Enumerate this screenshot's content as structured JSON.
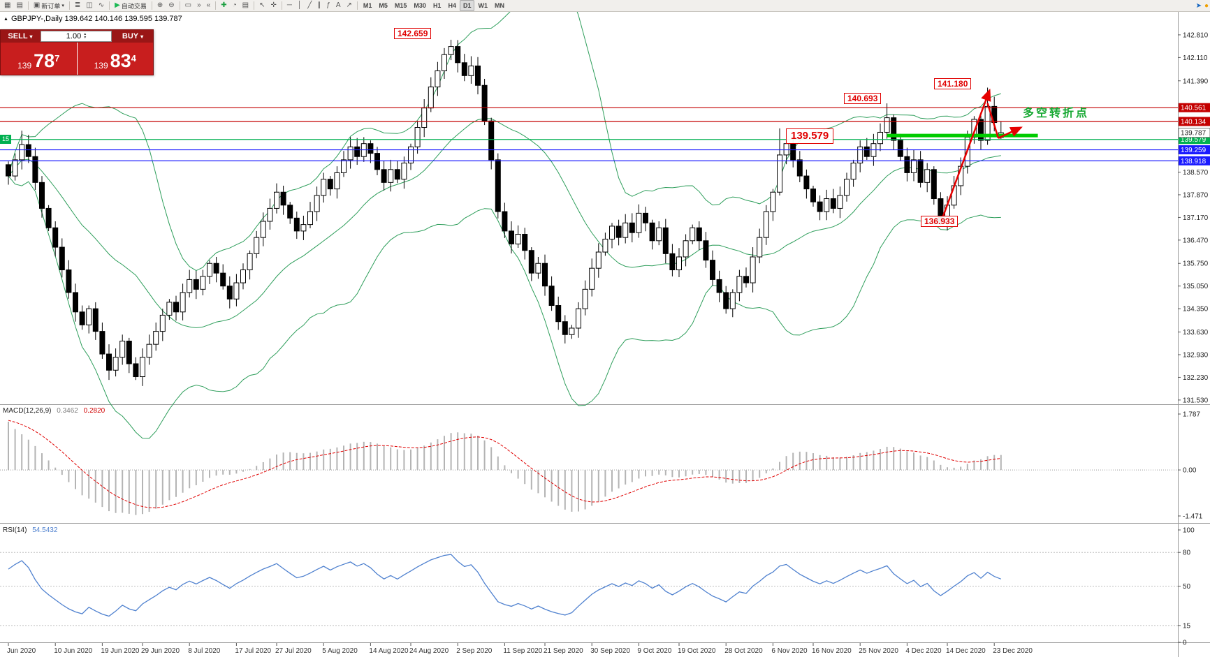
{
  "icons": {
    "caret_down": "▾",
    "spin_up": "▴",
    "spin_down": "▾",
    "symbol_marker": "▲"
  },
  "toolbar": {
    "items": [
      {
        "t": "i",
        "n": "new-chart-icon",
        "g": "▦"
      },
      {
        "t": "i",
        "n": "chart-profiles-icon",
        "g": "▤"
      },
      {
        "t": "s"
      },
      {
        "t": "b",
        "n": "new-order-button",
        "g": "▣",
        "l": "新订单",
        "caret": true
      },
      {
        "t": "s"
      },
      {
        "t": "i",
        "n": "bars-chart-icon",
        "g": "≣"
      },
      {
        "t": "i",
        "n": "candles-chart-icon",
        "g": "◫"
      },
      {
        "t": "i",
        "n": "line-chart-icon",
        "g": "∿"
      },
      {
        "t": "s"
      },
      {
        "t": "b",
        "n": "autotrade-button",
        "g": "▶",
        "gc": "#1db954",
        "l": "自动交易"
      },
      {
        "t": "s"
      },
      {
        "t": "i",
        "n": "zoom-in-icon",
        "g": "⊕"
      },
      {
        "t": "i",
        "n": "zoom-out-icon",
        "g": "⊖"
      },
      {
        "t": "s"
      },
      {
        "t": "i",
        "n": "tile-windows-icon",
        "g": "▭"
      },
      {
        "t": "i",
        "n": "auto-scroll-icon",
        "g": "»"
      },
      {
        "t": "i",
        "n": "chart-shift-icon",
        "g": "«"
      },
      {
        "t": "s"
      },
      {
        "t": "i",
        "n": "indicators-add-icon",
        "g": "✚",
        "gc": "#1a9e3f"
      },
      {
        "t": "i",
        "n": "period-icon",
        "g": "◔"
      },
      {
        "t": "i",
        "n": "template-icon",
        "g": "▤"
      },
      {
        "t": "s"
      },
      {
        "t": "i",
        "n": "cursor-icon",
        "g": "↖"
      },
      {
        "t": "i",
        "n": "crosshair-icon",
        "g": "✛"
      },
      {
        "t": "s"
      },
      {
        "t": "i",
        "n": "hline-icon",
        "g": "─"
      },
      {
        "t": "i",
        "n": "vline-icon",
        "g": "│"
      },
      {
        "t": "i",
        "n": "trendline-icon",
        "g": "╱"
      },
      {
        "t": "i",
        "n": "channel-icon",
        "g": "∥"
      },
      {
        "t": "i",
        "n": "fibonacci-icon",
        "g": "ƒ"
      },
      {
        "t": "i",
        "n": "text-icon",
        "g": "A"
      },
      {
        "t": "i",
        "n": "arrows-icon",
        "g": "↗"
      },
      {
        "t": "s"
      }
    ],
    "timeframes": [
      "M1",
      "M5",
      "M15",
      "M30",
      "H1",
      "H4",
      "D1",
      "W1",
      "MN"
    ],
    "active_timeframe": "D1",
    "right_items": [
      {
        "n": "one-click-arrow-icon",
        "g": "➤",
        "gc": "#1565c0"
      },
      {
        "n": "alert-status-icon",
        "g": "●",
        "gc": "#f0a000"
      }
    ]
  },
  "chart_header": {
    "text": "GBPJPY-,Daily 139.642 140.146 139.595 139.787"
  },
  "trade_panel": {
    "sell_label": "SELL",
    "buy_label": "BUY",
    "volume": "1.00",
    "sell_price": {
      "prefix": "139",
      "big": "78",
      "sup": "7"
    },
    "buy_price": {
      "prefix": "139",
      "big": "83",
      "sup": "4"
    }
  },
  "indicators": {
    "macd": {
      "name": "MACD(12,26,9)",
      "value_main": "0.3462",
      "value_signal": "0.2820",
      "axis": [
        "1.787",
        "0.00",
        "-1.471"
      ]
    },
    "rsi": {
      "name": "RSI(14)",
      "value": "54.5432",
      "axis": [
        "100",
        "80",
        "50",
        "15",
        "0"
      ],
      "levels": [
        80,
        50,
        15
      ]
    }
  },
  "annotations": {
    "high1": "142.659",
    "high2": "141.180",
    "high3": "140.693",
    "support": "139.579",
    "low1": "136.933",
    "note_cn": "多空转折点",
    "left_tag": "15"
  },
  "chart_data": {
    "type": "candlestick",
    "symbol": "GBPJPY-",
    "timeframe": "Daily",
    "ohlc_header": {
      "open": 139.642,
      "high": 140.146,
      "low": 139.595,
      "close": 139.787
    },
    "first_open": 138.8,
    "closes": [
      138.45,
      138.95,
      139.42,
      139.05,
      138.25,
      137.45,
      136.85,
      136.25,
      135.55,
      134.85,
      134.25,
      133.85,
      134.35,
      133.65,
      132.95,
      132.45,
      132.85,
      133.35,
      132.65,
      132.25,
      132.85,
      133.25,
      133.65,
      134.15,
      134.55,
      134.25,
      134.85,
      135.25,
      134.95,
      135.35,
      135.75,
      135.45,
      135.05,
      134.65,
      135.15,
      135.55,
      136.05,
      136.55,
      137.05,
      137.45,
      137.95,
      137.55,
      137.15,
      136.75,
      136.95,
      137.35,
      137.85,
      138.35,
      138.05,
      138.55,
      138.95,
      139.35,
      139.05,
      139.45,
      139.15,
      138.65,
      138.25,
      138.65,
      138.35,
      138.85,
      139.35,
      139.95,
      140.55,
      141.2,
      141.7,
      142.2,
      142.45,
      141.95,
      141.55,
      141.85,
      141.25,
      140.15,
      138.95,
      137.35,
      136.75,
      136.35,
      136.65,
      136.15,
      135.45,
      135.75,
      135.05,
      134.45,
      133.95,
      133.55,
      133.75,
      134.35,
      134.95,
      135.6,
      136.1,
      136.5,
      136.9,
      136.55,
      137.0,
      136.7,
      137.3,
      137.0,
      136.45,
      136.85,
      136.05,
      135.55,
      135.95,
      136.45,
      136.85,
      136.45,
      135.85,
      135.25,
      134.85,
      134.35,
      134.85,
      135.35,
      135.15,
      135.95,
      136.55,
      137.35,
      137.95,
      139.1,
      139.45,
      138.95,
      138.45,
      138.05,
      137.65,
      137.35,
      137.75,
      137.45,
      137.85,
      138.35,
      138.85,
      139.35,
      139.05,
      139.45,
      139.8,
      140.25,
      139.55,
      139.05,
      138.55,
      138.95,
      138.25,
      138.65,
      137.75,
      137.05,
      137.55,
      138.15,
      138.75,
      139.65,
      140.2,
      139.55,
      140.6,
      140.1,
      139.787
    ],
    "overrides": {
      "2": {
        "high": 139.85
      },
      "66": {
        "high": 142.659
      },
      "115": {
        "high": 139.92
      },
      "131": {
        "high": 140.693
      },
      "139": {
        "low": 136.933
      },
      "146": {
        "high": 141.18
      },
      "148": {
        "open": 139.642,
        "high": 140.146,
        "low": 139.595
      }
    },
    "x_labels": [
      {
        "i": 0,
        "t": "Jun 2020"
      },
      {
        "i": 7,
        "t": "10 Jun 2020"
      },
      {
        "i": 14,
        "t": "19 Jun 2020"
      },
      {
        "i": 20,
        "t": "29 Jun 2020"
      },
      {
        "i": 27,
        "t": "8 Jul 2020"
      },
      {
        "i": 34,
        "t": "17 Jul 2020"
      },
      {
        "i": 40,
        "t": "27 Jul 2020"
      },
      {
        "i": 47,
        "t": "5 Aug 2020"
      },
      {
        "i": 54,
        "t": "14 Aug 2020"
      },
      {
        "i": 60,
        "t": "24 Aug 2020"
      },
      {
        "i": 67,
        "t": "2 Sep 2020"
      },
      {
        "i": 74,
        "t": "11 Sep 2020"
      },
      {
        "i": 80,
        "t": "21 Sep 2020"
      },
      {
        "i": 87,
        "t": "30 Sep 2020"
      },
      {
        "i": 94,
        "t": "9 Oct 2020"
      },
      {
        "i": 100,
        "t": "19 Oct 2020"
      },
      {
        "i": 107,
        "t": "28 Oct 2020"
      },
      {
        "i": 114,
        "t": "6 Nov 2020"
      },
      {
        "i": 120,
        "t": "16 Nov 2020"
      },
      {
        "i": 127,
        "t": "25 Nov 2020"
      },
      {
        "i": 134,
        "t": "4 Dec 2020"
      },
      {
        "i": 140,
        "t": "14 Dec 2020"
      },
      {
        "i": 147,
        "t": "23 Dec 2020"
      }
    ],
    "y_ticks": [
      "142.810",
      "142.110",
      "141.390",
      "138.570",
      "137.870",
      "137.170",
      "136.470",
      "135.750",
      "135.050",
      "134.350",
      "133.630",
      "132.930",
      "132.230",
      "131.530"
    ],
    "hlines": [
      {
        "price": 140.561,
        "color": "#c40000",
        "label": "140.561"
      },
      {
        "price": 140.134,
        "color": "#c40000",
        "label": "140.134"
      },
      {
        "price": 139.579,
        "color": "#00b050",
        "label": "139.579"
      },
      {
        "price": 139.259,
        "color": "#1a1aff",
        "label": "139.259"
      },
      {
        "price": 138.918,
        "color": "#1a1aff",
        "label": "138.918"
      }
    ],
    "current_price": {
      "price": 139.787,
      "label": "139.787"
    },
    "bollinger": {
      "period": 20,
      "deviation": 2,
      "color": "#2e9e5b"
    },
    "macd_seed": [
      141.0,
      139.0,
      1.7
    ],
    "rsi_seed": [
      0.2,
      0.08
    ],
    "objects": {
      "thick_segment": {
        "price": 139.7,
        "i1": 131,
        "i2": 153.5,
        "color": "#00cc00"
      },
      "arrow": {
        "color": "#e60000",
        "segments": [
          [
            [
              139.0,
              137.0
            ],
            [
              146.3,
              141.1
            ]
          ],
          [
            [
              146.0,
              140.7
            ],
            [
              147.6,
              139.62
            ]
          ],
          [
            [
              147.6,
              139.62
            ],
            [
              151.0,
              139.95
            ]
          ]
        ]
      }
    }
  }
}
